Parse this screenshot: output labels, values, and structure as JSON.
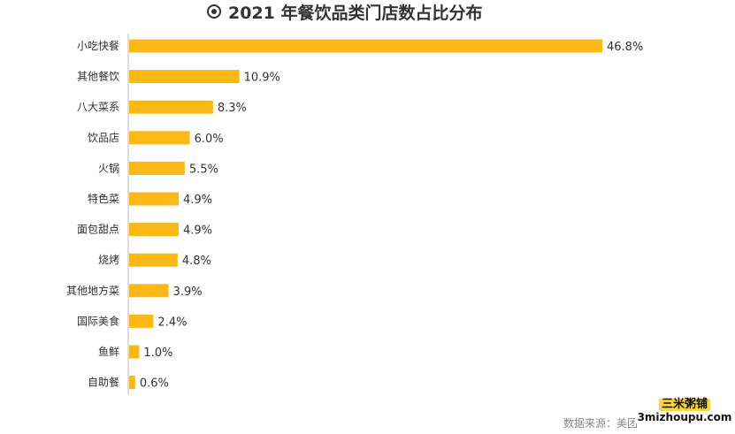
{
  "title": "2021 年餐饮品类门店数占比分布",
  "source_text": "数据来源：美团",
  "watermark": {
    "name": "三米粥铺",
    "url": "3mizhoupu.com"
  },
  "colors": {
    "bar": "#FBB817",
    "axis": "#bbbbbb",
    "text": "#333333"
  },
  "chart_data": {
    "type": "bar",
    "orientation": "horizontal",
    "title": "2021 年餐饮品类门店数占比分布",
    "categories": [
      "小吃快餐",
      "其他餐饮",
      "八大菜系",
      "饮品店",
      "火锅",
      "特色菜",
      "面包甜点",
      "烧烤",
      "其他地方菜",
      "国际美食",
      "鱼鲜",
      "自助餐"
    ],
    "values": [
      46.8,
      10.9,
      8.3,
      6.0,
      5.5,
      4.9,
      4.9,
      4.8,
      3.9,
      2.4,
      1.0,
      0.6
    ],
    "value_labels": [
      "46.8%",
      "10.9%",
      "8.3%",
      "6.0%",
      "5.5%",
      "4.9%",
      "4.9%",
      "4.8%",
      "3.9%",
      "2.4%",
      "1.0%",
      "0.6%"
    ],
    "unit": "%",
    "grid": false,
    "legend": "none"
  }
}
